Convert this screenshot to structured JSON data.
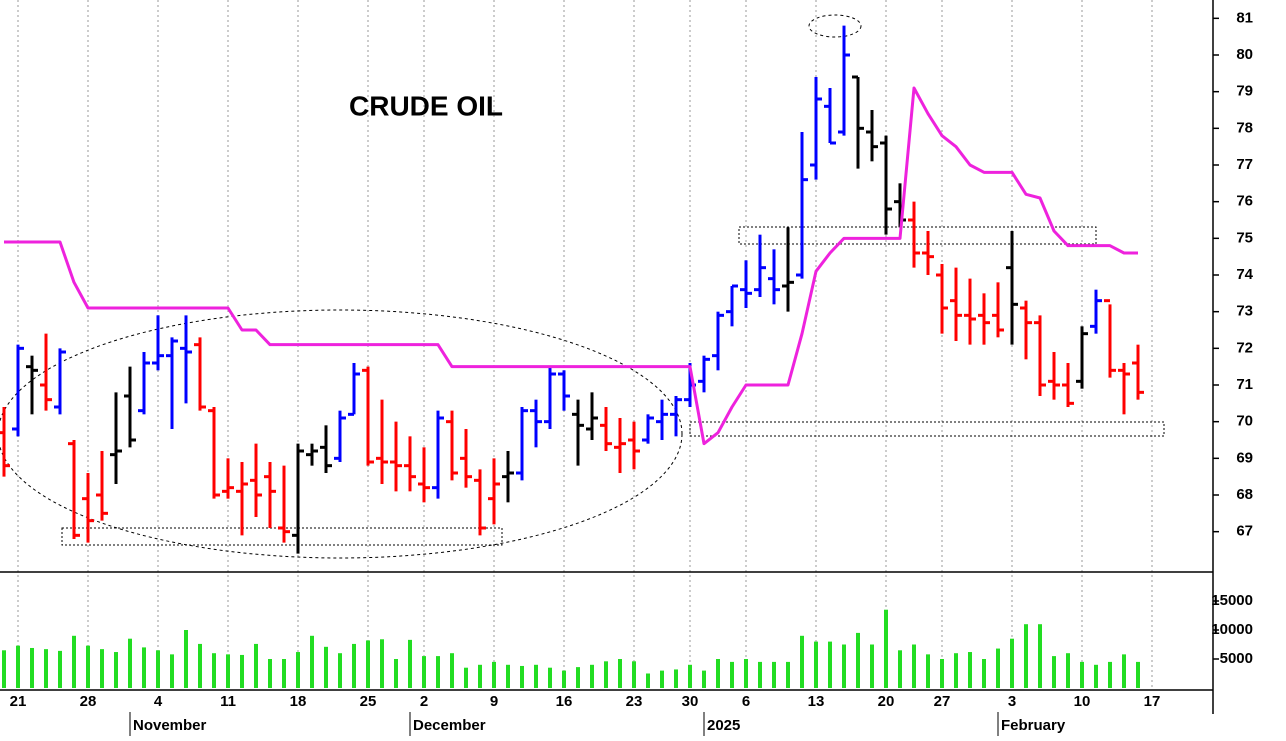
{
  "chart_data": [
    {
      "type": "ohlc",
      "title": "CRUDE OIL",
      "categories": [
        null,
        "21",
        null,
        null,
        null,
        null,
        "28",
        null,
        null,
        null,
        null,
        "4",
        null,
        null,
        null,
        null,
        "11",
        null,
        null,
        null,
        null,
        "18",
        null,
        null,
        null,
        null,
        "25",
        null,
        null,
        null,
        "2",
        null,
        null,
        null,
        null,
        "9",
        null,
        null,
        null,
        null,
        "16",
        null,
        null,
        null,
        null,
        "23",
        null,
        null,
        null,
        "30",
        null,
        null,
        null,
        "6",
        null,
        null,
        null,
        null,
        "13",
        null,
        null,
        null,
        null,
        "20",
        null,
        null,
        null,
        "27",
        null,
        null,
        null,
        null,
        "3",
        null,
        null,
        null,
        null,
        "10",
        null,
        null,
        null,
        null,
        "17",
        null,
        null,
        null,
        null
      ],
      "months": [
        null,
        null,
        null,
        null,
        null,
        null,
        null,
        null,
        null,
        null,
        "November",
        null,
        null,
        null,
        null,
        null,
        null,
        null,
        null,
        null,
        null,
        null,
        null,
        null,
        null,
        null,
        null,
        null,
        null,
        null,
        "December",
        null,
        null,
        null,
        null,
        null,
        null,
        null,
        null,
        null,
        null,
        null,
        null,
        null,
        null,
        null,
        null,
        null,
        null,
        null,
        null,
        "2025",
        null,
        null,
        null,
        null,
        null,
        null,
        null,
        null,
        null,
        null,
        null,
        null,
        null,
        null,
        null,
        null,
        null,
        null,
        null,
        null,
        "February",
        null,
        null,
        null,
        null,
        null,
        null,
        null,
        null,
        null,
        null,
        null,
        null,
        null,
        null
      ],
      "open": [
        69.7,
        69.8,
        71.5,
        71.0,
        70.4,
        69.4,
        67.9,
        68.0,
        69.1,
        70.7,
        70.3,
        71.6,
        71.8,
        72.0,
        72.1,
        70.3,
        68.1,
        68.1,
        68.4,
        68.5,
        67.1,
        66.9,
        69.1,
        69.3,
        69.0,
        70.2,
        71.4,
        69.0,
        68.9,
        68.8,
        68.3,
        68.2,
        70.0,
        69.0,
        68.4,
        67.9,
        68.5,
        68.6,
        70.3,
        70.0,
        71.3,
        70.2,
        69.8,
        69.9,
        69.3,
        69.5,
        69.5,
        70.0,
        70.2,
        70.6,
        71.1,
        71.8,
        73.0,
        73.6,
        73.6,
        73.9,
        73.7,
        74.0,
        77.0,
        78.6,
        77.9,
        79.4,
        77.9,
        77.6,
        76.0,
        75.5,
        74.6,
        74.0,
        73.3,
        72.9,
        72.9,
        72.9,
        74.2,
        73.1,
        72.7,
        71.1,
        71.0,
        71.1,
        72.6,
        73.3,
        71.4,
        71.6,
        null,
        null,
        null,
        null,
        null
      ],
      "high": [
        70.4,
        72.1,
        71.8,
        72.4,
        72.0,
        69.5,
        68.6,
        69.2,
        70.8,
        71.5,
        71.9,
        72.9,
        72.3,
        72.9,
        72.3,
        70.4,
        69.0,
        68.9,
        69.4,
        68.9,
        68.8,
        69.4,
        69.4,
        69.9,
        70.3,
        71.6,
        71.5,
        70.6,
        70.0,
        69.6,
        69.3,
        70.3,
        70.3,
        69.8,
        68.7,
        69.0,
        69.2,
        70.4,
        70.6,
        71.5,
        71.4,
        70.6,
        70.8,
        70.4,
        70.1,
        70.0,
        70.2,
        70.6,
        70.7,
        71.6,
        71.8,
        73.0,
        73.7,
        74.4,
        75.1,
        74.7,
        75.3,
        77.9,
        79.4,
        79.1,
        80.8,
        79.4,
        78.5,
        77.8,
        76.5,
        76.0,
        75.2,
        74.3,
        74.2,
        73.9,
        73.5,
        73.8,
        75.2,
        73.3,
        72.9,
        71.9,
        71.6,
        72.6,
        73.6,
        73.2,
        71.6,
        72.1,
        null,
        null,
        null,
        null,
        null
      ],
      "low": [
        68.5,
        69.6,
        70.2,
        70.3,
        70.2,
        66.8,
        66.7,
        67.3,
        68.3,
        69.3,
        70.2,
        71.4,
        69.8,
        70.5,
        70.3,
        67.9,
        67.9,
        66.9,
        67.4,
        67.1,
        66.7,
        66.4,
        68.8,
        68.6,
        68.9,
        70.2,
        68.8,
        68.3,
        68.1,
        68.1,
        67.8,
        67.9,
        68.4,
        68.2,
        66.9,
        67.2,
        67.8,
        68.4,
        69.3,
        69.8,
        70.3,
        68.8,
        69.5,
        69.2,
        68.6,
        68.7,
        69.4,
        69.5,
        69.6,
        70.4,
        70.8,
        71.4,
        72.6,
        73.1,
        73.4,
        73.2,
        73.0,
        73.9,
        76.6,
        77.6,
        77.8,
        76.9,
        77.1,
        75.1,
        75.3,
        74.2,
        74.0,
        72.4,
        72.2,
        72.1,
        72.1,
        72.3,
        72.1,
        71.7,
        70.7,
        70.6,
        70.4,
        70.9,
        72.4,
        71.2,
        70.2,
        70.6,
        null,
        null,
        null,
        null,
        null
      ],
      "close": [
        68.8,
        72.0,
        71.4,
        70.6,
        71.9,
        66.9,
        67.3,
        67.5,
        69.2,
        69.5,
        71.6,
        71.8,
        72.2,
        71.9,
        70.4,
        68.0,
        68.2,
        68.3,
        68.0,
        68.1,
        67.0,
        69.2,
        69.2,
        68.8,
        70.1,
        71.3,
        68.9,
        68.9,
        68.8,
        68.5,
        68.2,
        70.1,
        68.6,
        68.5,
        67.1,
        68.3,
        68.6,
        70.3,
        70.0,
        71.3,
        70.7,
        69.9,
        70.1,
        69.4,
        69.4,
        69.2,
        70.1,
        70.2,
        70.6,
        71.0,
        71.7,
        72.9,
        73.7,
        73.5,
        74.2,
        73.6,
        73.8,
        76.6,
        78.8,
        77.6,
        80.0,
        78.0,
        77.5,
        75.8,
        75.5,
        74.6,
        74.5,
        73.1,
        72.9,
        72.8,
        72.7,
        72.5,
        73.2,
        72.7,
        71.0,
        71.0,
        70.5,
        72.4,
        73.3,
        71.4,
        71.3,
        70.8,
        null,
        null,
        null,
        null,
        null
      ],
      "bar_colors": [
        "#ff0000",
        "#0000ff",
        "#000000",
        "#ff0000",
        "#0000ff",
        "#ff0000",
        "#ff0000",
        "#ff0000",
        "#000000",
        "#000000",
        "#0000ff",
        "#0000ff",
        "#0000ff",
        "#0000ff",
        "#ff0000",
        "#ff0000",
        "#ff0000",
        "#ff0000",
        "#ff0000",
        "#ff0000",
        "#ff0000",
        "#000000",
        "#000000",
        "#000000",
        "#0000ff",
        "#0000ff",
        "#ff0000",
        "#ff0000",
        "#ff0000",
        "#ff0000",
        "#ff0000",
        "#0000ff",
        "#ff0000",
        "#ff0000",
        "#ff0000",
        "#ff0000",
        "#000000",
        "#0000ff",
        "#0000ff",
        "#0000ff",
        "#0000ff",
        "#000000",
        "#000000",
        "#ff0000",
        "#ff0000",
        "#ff0000",
        "#0000ff",
        "#0000ff",
        "#0000ff",
        "#0000ff",
        "#0000ff",
        "#0000ff",
        "#0000ff",
        "#0000ff",
        "#0000ff",
        "#0000ff",
        "#000000",
        "#0000ff",
        "#0000ff",
        "#0000ff",
        "#0000ff",
        "#000000",
        "#000000",
        "#000000",
        "#000000",
        "#ff0000",
        "#ff0000",
        "#ff0000",
        "#ff0000",
        "#ff0000",
        "#ff0000",
        "#ff0000",
        "#000000",
        "#ff0000",
        "#ff0000",
        "#ff0000",
        "#ff0000",
        "#000000",
        "#0000ff",
        "#ff0000",
        "#ff0000",
        "#ff0000",
        null,
        null,
        null,
        null,
        null
      ],
      "series": [
        {
          "color": "#ee22dd",
          "values": [
            74.9,
            74.9,
            74.9,
            74.9,
            74.9,
            73.8,
            73.1,
            73.1,
            73.1,
            73.1,
            73.1,
            73.1,
            73.1,
            73.1,
            73.1,
            73.1,
            73.1,
            72.5,
            72.5,
            72.1,
            72.1,
            72.1,
            72.1,
            72.1,
            72.1,
            72.1,
            72.1,
            72.1,
            72.1,
            72.1,
            72.1,
            72.1,
            71.5,
            71.5,
            71.5,
            71.5,
            71.5,
            71.5,
            71.5,
            71.5,
            71.5,
            71.5,
            71.5,
            71.5,
            71.5,
            71.5,
            71.5,
            71.5,
            71.5,
            71.5,
            69.4,
            69.7,
            70.4,
            71.0,
            71.0,
            71.0,
            71.0,
            72.4,
            74.1,
            74.6,
            75.0,
            75.0,
            75.0,
            75.0,
            75.0,
            79.1,
            78.4,
            77.8,
            77.5,
            77.0,
            76.8,
            76.8,
            76.8,
            76.2,
            76.1,
            75.2,
            74.8,
            74.8,
            74.8,
            74.8,
            74.6,
            74.6,
            null,
            null,
            null,
            null,
            null
          ]
        }
      ],
      "ylim": [
        65.9,
        81.5
      ],
      "yticks": [
        67,
        68,
        69,
        70,
        71,
        72,
        73,
        74,
        75,
        76,
        77,
        78,
        79,
        80,
        81
      ]
    },
    {
      "type": "bar",
      "color": "#22dd22",
      "values": [
        6500,
        7300,
        6900,
        6700,
        6400,
        9000,
        7300,
        6700,
        6200,
        8500,
        7000,
        6500,
        5800,
        10000,
        7600,
        6000,
        5800,
        5700,
        7600,
        5000,
        5000,
        6200,
        9000,
        7100,
        6000,
        7600,
        8200,
        8400,
        5000,
        8300,
        5500,
        5500,
        6000,
        3500,
        4000,
        4500,
        4000,
        3800,
        4000,
        3500,
        3000,
        3600,
        4000,
        4600,
        5000,
        4600,
        2500,
        3000,
        3200,
        4000,
        3000,
        5000,
        4500,
        5000,
        4500,
        4500,
        4500,
        9000,
        8000,
        8000,
        7500,
        9500,
        7500,
        13500,
        6500,
        7500,
        5800,
        5000,
        6000,
        6200,
        5000,
        6800,
        8500,
        11000,
        11000,
        5500,
        6000,
        4500,
        4000,
        4500,
        5800,
        4500,
        null,
        null,
        null,
        null,
        null
      ],
      "ylim": [
        0,
        20000
      ],
      "yticks": [
        5000,
        10000,
        15000
      ]
    }
  ]
}
